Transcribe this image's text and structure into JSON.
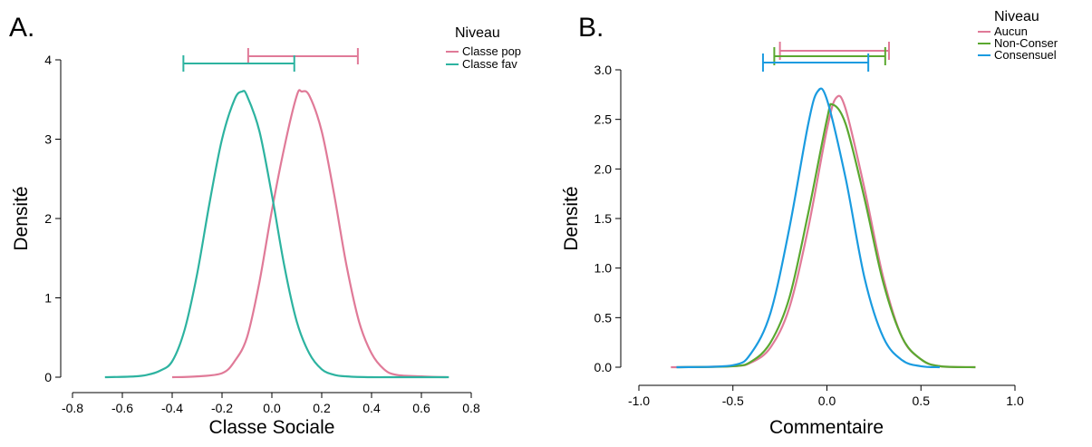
{
  "chart_data": [
    {
      "panel_label": "A.",
      "type": "line",
      "xlabel": "Classe Sociale",
      "ylabel": "Densité",
      "xlim": [
        -0.8,
        0.8
      ],
      "ylim": [
        0,
        4
      ],
      "xticks": [
        -0.8,
        -0.6,
        -0.4,
        -0.2,
        0.0,
        0.2,
        0.4,
        0.6,
        0.8
      ],
      "xtick_labels": [
        "-0.8",
        "-0.6",
        "-0.4",
        "-0.2",
        "0.0",
        "0.2",
        "0.4",
        "0.6",
        "0.8"
      ],
      "yticks": [
        0,
        1,
        2,
        3,
        4
      ],
      "ytick_labels": [
        "0",
        "1",
        "2",
        "3",
        "4"
      ],
      "grid": false,
      "legend": {
        "title": "Niveau",
        "position": "top-right",
        "entries": [
          {
            "label": "Classe pop",
            "color": "#e07a98"
          },
          {
            "label": "Classe fav",
            "color": "#2db3a0"
          }
        ]
      },
      "series": [
        {
          "name": "Classe pop",
          "color": "#e07a98",
          "x": [
            -0.4,
            -0.3,
            -0.2,
            -0.15,
            -0.1,
            -0.05,
            0.0,
            0.05,
            0.1,
            0.12,
            0.15,
            0.2,
            0.25,
            0.3,
            0.35,
            0.4,
            0.45,
            0.5,
            0.6,
            0.7
          ],
          "y": [
            0.0,
            0.01,
            0.05,
            0.2,
            0.5,
            1.2,
            2.1,
            2.9,
            3.55,
            3.6,
            3.55,
            3.1,
            2.3,
            1.4,
            0.7,
            0.3,
            0.1,
            0.03,
            0.01,
            0.0
          ],
          "interval": [
            -0.095,
            0.345
          ]
        },
        {
          "name": "Classe fav",
          "color": "#2db3a0",
          "x": [
            -0.67,
            -0.55,
            -0.5,
            -0.45,
            -0.4,
            -0.35,
            -0.3,
            -0.25,
            -0.2,
            -0.15,
            -0.12,
            -0.1,
            -0.05,
            0.0,
            0.05,
            0.1,
            0.15,
            0.2,
            0.25,
            0.3,
            0.4,
            0.5,
            0.71
          ],
          "y": [
            0.0,
            0.01,
            0.03,
            0.08,
            0.2,
            0.6,
            1.3,
            2.2,
            3.0,
            3.5,
            3.6,
            3.55,
            3.1,
            2.3,
            1.4,
            0.7,
            0.3,
            0.1,
            0.03,
            0.01,
            0.0,
            0.0,
            0.0
          ],
          "interval": [
            -0.355,
            0.09
          ]
        }
      ]
    },
    {
      "panel_label": "B.",
      "type": "line",
      "xlabel": "Commentaire",
      "ylabel": "Densité",
      "xlim": [
        -1.0,
        1.0
      ],
      "ylim": [
        0,
        3.0
      ],
      "xticks": [
        -1.0,
        -0.5,
        0.0,
        0.5,
        1.0
      ],
      "xtick_labels": [
        "-1.0",
        "-0.5",
        "0.0",
        "0.5",
        "1.0"
      ],
      "yticks": [
        0.0,
        0.5,
        1.0,
        1.5,
        2.0,
        2.5,
        3.0
      ],
      "ytick_labels": [
        "0.0",
        "0.5",
        "1.0",
        "1.5",
        "2.0",
        "2.5",
        "3.0"
      ],
      "grid": false,
      "legend": {
        "title": "Niveau",
        "position": "top-right",
        "entries": [
          {
            "label": "Aucun",
            "color": "#e07a98"
          },
          {
            "label": "Non-Conser",
            "color": "#5aa830"
          },
          {
            "label": "Consensuel",
            "color": "#1a9be0"
          }
        ]
      },
      "series": [
        {
          "name": "Aucun",
          "color": "#e07a98",
          "x": [
            -0.83,
            -0.5,
            -0.4,
            -0.3,
            -0.2,
            -0.1,
            0.0,
            0.05,
            0.1,
            0.2,
            0.3,
            0.4,
            0.5,
            0.6,
            0.79
          ],
          "y": [
            0.0,
            0.01,
            0.05,
            0.2,
            0.6,
            1.4,
            2.4,
            2.72,
            2.6,
            1.8,
            0.9,
            0.3,
            0.08,
            0.01,
            0.0
          ],
          "interval": [
            -0.25,
            0.33
          ]
        },
        {
          "name": "Non-Conser",
          "color": "#5aa830",
          "x": [
            -0.8,
            -0.5,
            -0.4,
            -0.3,
            -0.2,
            -0.1,
            0.0,
            0.03,
            0.1,
            0.2,
            0.3,
            0.4,
            0.5,
            0.6,
            0.79
          ],
          "y": [
            0.0,
            0.01,
            0.06,
            0.25,
            0.7,
            1.55,
            2.5,
            2.65,
            2.45,
            1.7,
            0.85,
            0.3,
            0.08,
            0.01,
            0.0
          ],
          "interval": [
            -0.28,
            0.31
          ]
        },
        {
          "name": "Consensuel",
          "color": "#1a9be0",
          "x": [
            -0.8,
            -0.5,
            -0.4,
            -0.3,
            -0.2,
            -0.1,
            -0.05,
            0.0,
            0.1,
            0.2,
            0.3,
            0.4,
            0.5,
            0.6
          ],
          "y": [
            0.0,
            0.02,
            0.15,
            0.55,
            1.4,
            2.45,
            2.78,
            2.7,
            1.9,
            0.9,
            0.3,
            0.07,
            0.01,
            0.0
          ],
          "interval": [
            -0.34,
            0.22
          ]
        }
      ]
    }
  ]
}
